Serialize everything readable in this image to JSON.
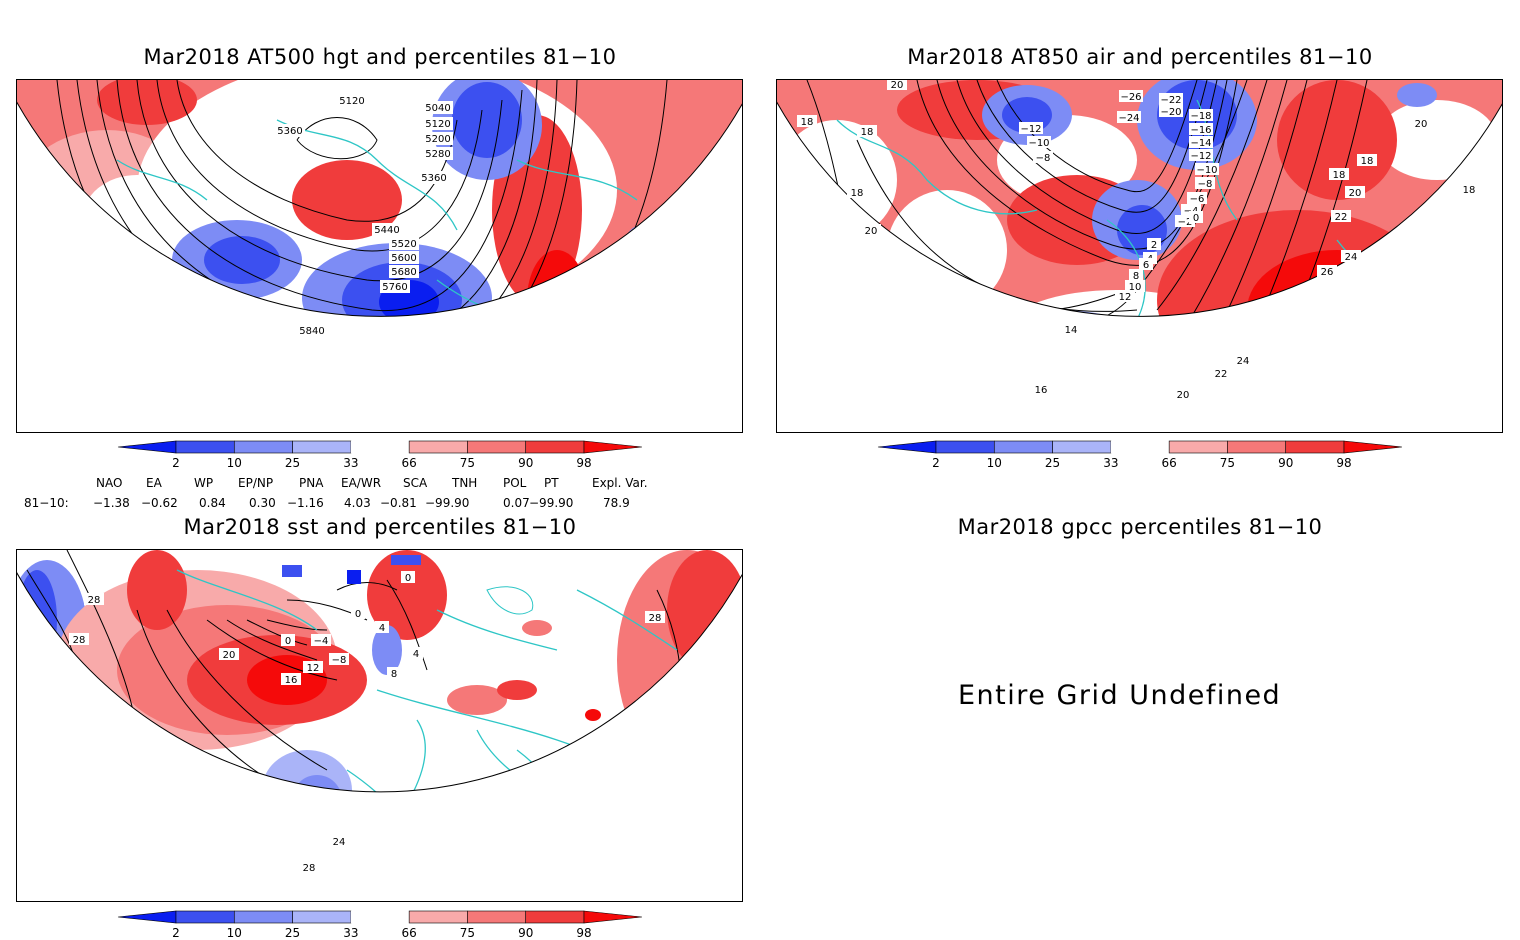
{
  "colors": {
    "blue_dark": "#0a1ef0",
    "blue_mid": "#3c50f0",
    "blue_light": "#7d8cf5",
    "blue_pale": "#aab4f8",
    "red_pale": "#f8aaaa",
    "red_light": "#f57878",
    "red_mid": "#f03c3c",
    "red_dark": "#f50a0a",
    "coast": "#2ec6c6"
  },
  "colorbar": {
    "ticks": [
      "2",
      "10",
      "25",
      "33",
      "66",
      "75",
      "90",
      "98"
    ]
  },
  "panels": {
    "hgt500": {
      "title": "Mar2018 AT500 hgt and percentiles 81−10",
      "contour_labels": [
        "5120",
        "5360",
        "5040",
        "5120",
        "5200",
        "5280",
        "5360",
        "5440",
        "5520",
        "5600",
        "5680",
        "5760",
        "5840"
      ]
    },
    "air850": {
      "title": "Mar2018 AT850 air and percentiles 81−10",
      "contour_labels": [
        "20",
        "18",
        "18",
        "18",
        "20",
        "−12",
        "−10",
        "−8",
        "−26",
        "−24",
        "−22",
        "−20",
        "−18",
        "−16",
        "−14",
        "−12",
        "−10",
        "−8",
        "−6",
        "−4",
        "−2",
        "0",
        "18",
        "20",
        "22",
        "24",
        "26",
        "18",
        "20",
        "2",
        "4",
        "6",
        "8",
        "10",
        "12",
        "14",
        "16",
        "20",
        "22",
        "24",
        "18"
      ]
    },
    "sst": {
      "title": "Mar2018 sst and percentiles 81−10",
      "contour_labels": [
        "28",
        "28",
        "20",
        "16",
        "12",
        "0",
        "−4",
        "−8",
        "0",
        "4",
        "8",
        "4",
        "24",
        "28",
        "28",
        "0"
      ]
    },
    "gpcc": {
      "title": "Mar2018 gpcc percentiles 81−10",
      "message": "Entire Grid Undefined"
    }
  },
  "teleconnections": {
    "headers": [
      "NAO",
      "EA",
      "WP",
      "EP/NP",
      "PNA",
      "EA/WR",
      "SCA",
      "TNH",
      "POL",
      "PT",
      "Expl. Var."
    ],
    "row_label": "81−10:",
    "values": [
      "−1.38",
      "−0.62",
      "0.84",
      "0.30",
      "−1.16",
      "4.03",
      "−0.81",
      "−99.90",
      "0.07",
      "−99.90",
      "78.9"
    ]
  }
}
